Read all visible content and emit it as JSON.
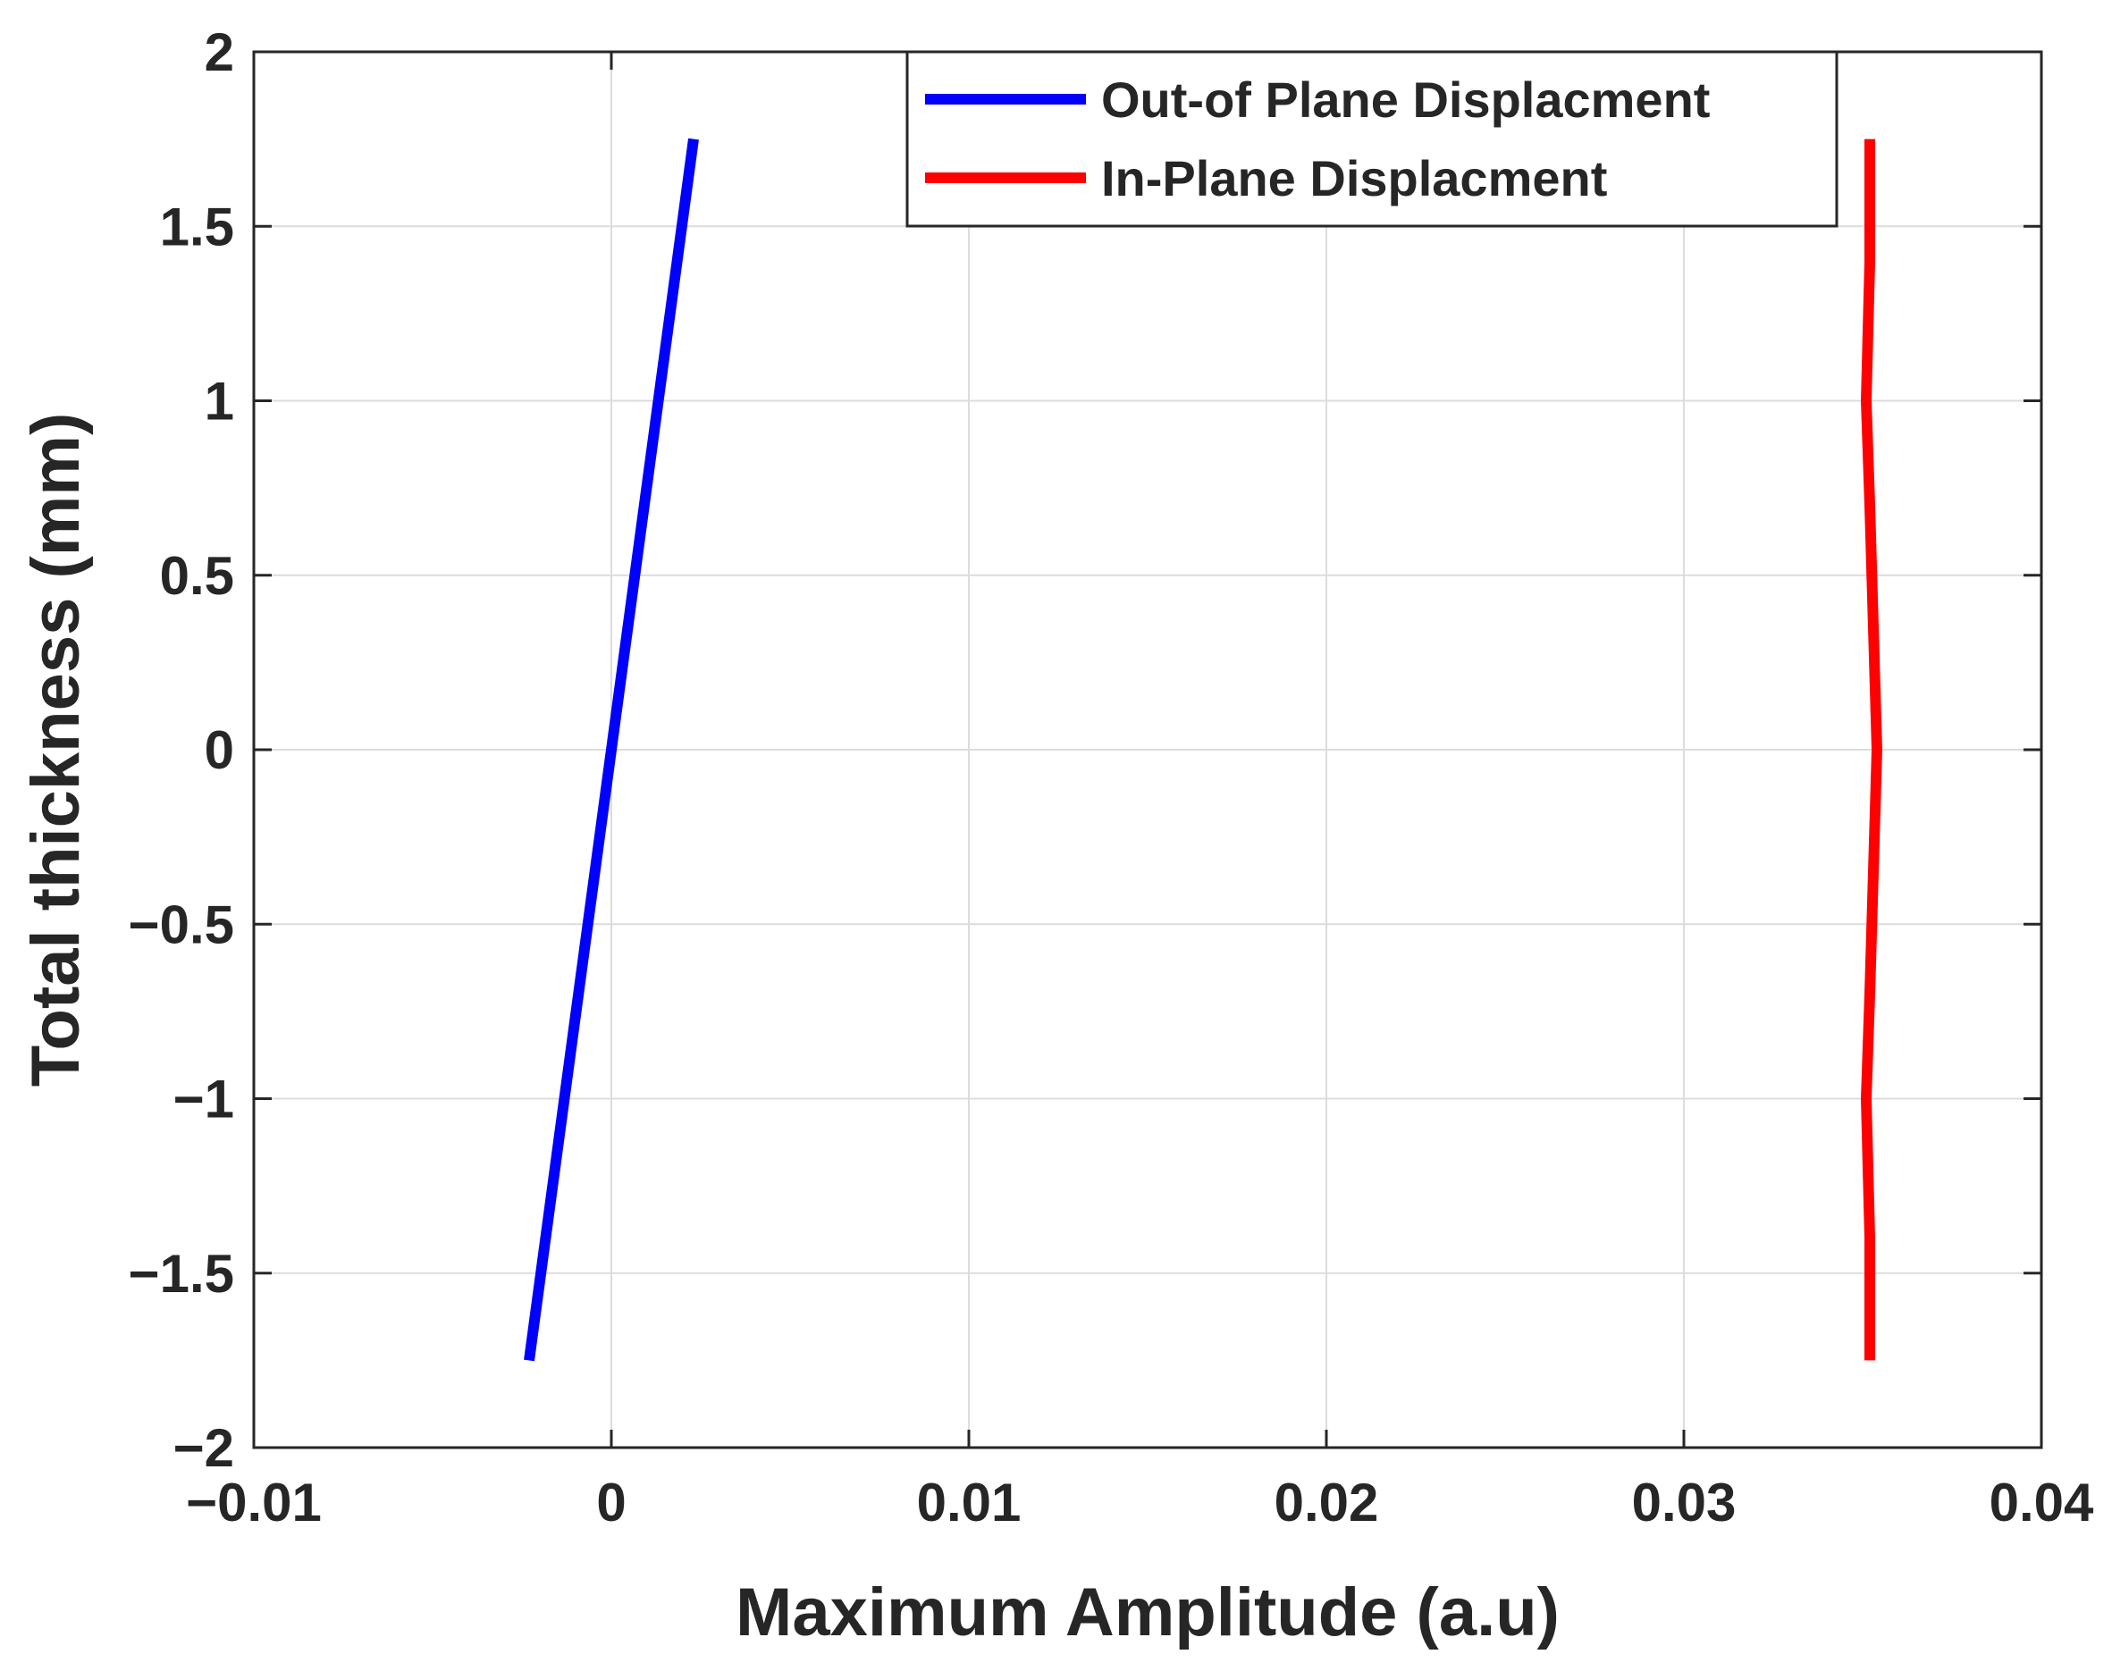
{
  "chart_data": {
    "type": "line",
    "title": "",
    "xlabel": "Maximum Amplitude (a.u)",
    "ylabel": "Total thickness (mm)",
    "xlim": [
      -0.01,
      0.04
    ],
    "ylim": [
      -2,
      2
    ],
    "xticks": [
      -0.01,
      0,
      0.01,
      0.02,
      0.03,
      0.04
    ],
    "xtick_labels": [
      "−0.01",
      "0",
      "0.01",
      "0.02",
      "0.03",
      "0.04"
    ],
    "yticks": [
      -2,
      -1.5,
      -1,
      -0.5,
      0,
      0.5,
      1,
      1.5,
      2
    ],
    "ytick_labels": [
      "−2",
      "−1.5",
      "−1",
      "−0.5",
      "0",
      "0.5",
      "1",
      "1.5",
      "2"
    ],
    "grid": true,
    "legend_position": "top-right",
    "series": [
      {
        "name": "Out-of Plane Displacment",
        "color": "#0000ff",
        "x": [
          -0.0023,
          0,
          0.0023
        ],
        "y": [
          -1.75,
          0,
          1.75
        ]
      },
      {
        "name": "In-Plane Displacment",
        "color": "#ff0000",
        "x": [
          0.0352,
          0.0352,
          0.0351,
          0.0352,
          0.0353,
          0.0354,
          0.0353,
          0.0352,
          0.0351,
          0.0352,
          0.0352
        ],
        "y": [
          -1.75,
          -1.4,
          -1.0,
          -0.7,
          -0.35,
          0,
          0.35,
          0.7,
          1.0,
          1.4,
          1.75
        ]
      }
    ]
  }
}
